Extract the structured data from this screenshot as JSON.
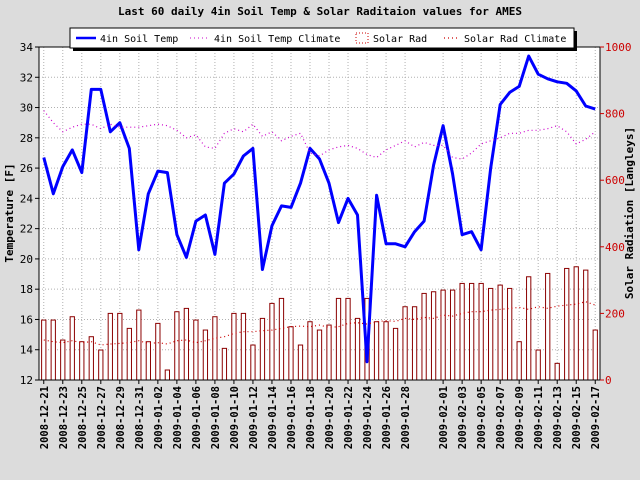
{
  "chart_data": {
    "type": "bar+line",
    "title": "Last 60 daily 4in Soil Temp & Solar Raditaion values for  AMES",
    "ylabel": "Temperature [F]",
    "y2label": "Solar Radiation [Langleys]",
    "ylim": [
      12,
      34
    ],
    "y2lim": [
      0,
      1000
    ],
    "yticks": [
      12,
      14,
      16,
      18,
      20,
      22,
      24,
      26,
      28,
      30,
      32,
      34
    ],
    "y2ticks": [
      0,
      200,
      400,
      600,
      800,
      1000
    ],
    "grid": true,
    "legend_position": "top",
    "legend": [
      "4in Soil Temp",
      "4in Soil Temp Climate",
      "Solar Rad",
      "Solar Rad Climate"
    ],
    "dates": [
      "2008-12-21",
      "2008-12-22",
      "2008-12-23",
      "2008-12-24",
      "2008-12-25",
      "2008-12-26",
      "2008-12-27",
      "2008-12-28",
      "2008-12-29",
      "2008-12-30",
      "2008-12-31",
      "2009-01-01",
      "2009-01-02",
      "2009-01-03",
      "2009-01-04",
      "2009-01-05",
      "2009-01-06",
      "2009-01-07",
      "2009-01-08",
      "2009-01-09",
      "2009-01-10",
      "2009-01-11",
      "2009-01-12",
      "2009-01-13",
      "2009-01-14",
      "2009-01-15",
      "2009-01-16",
      "2009-01-17",
      "2009-01-18",
      "2009-01-19",
      "2009-01-20",
      "2009-01-21",
      "2009-01-22",
      "2009-01-23",
      "2009-01-24",
      "2009-01-25",
      "2009-01-26",
      "2009-01-27",
      "2009-01-28",
      "2009-01-29",
      "2009-01-30",
      "2009-01-31",
      "2009-02-01",
      "2009-02-02",
      "2009-02-03",
      "2009-02-04",
      "2009-02-05",
      "2009-02-06",
      "2009-02-07",
      "2009-02-08",
      "2009-02-09",
      "2009-02-10",
      "2009-02-11",
      "2009-02-12",
      "2009-02-13",
      "2009-02-14",
      "2009-02-15",
      "2009-02-16",
      "2009-02-17"
    ],
    "xtick_labels": [
      "2008-12-21",
      "2008-12-23",
      "2008-12-25",
      "2008-12-27",
      "2008-12-29",
      "2008-12-31",
      "2009-01-02",
      "2009-01-04",
      "2009-01-06",
      "2009-01-08",
      "2009-01-10",
      "2009-01-12",
      "2009-01-14",
      "2009-01-16",
      "2009-01-18",
      "2009-01-20",
      "2009-01-22",
      "2009-01-24",
      "2009-01-26",
      "2009-01-28",
      "2009-02-01",
      "2009-02-03",
      "2009-02-05",
      "2009-02-07",
      "2009-02-09",
      "2009-02-11",
      "2009-02-13",
      "2009-02-15",
      "2009-02-17"
    ],
    "series": [
      {
        "name": "4in Soil Temp",
        "axis": "left",
        "color": "#0000ff",
        "style": "solid",
        "values": [
          26.7,
          24.3,
          26.1,
          27.2,
          25.7,
          31.2,
          31.2,
          28.4,
          29.0,
          27.3,
          20.6,
          24.3,
          25.8,
          25.7,
          21.6,
          20.1,
          22.5,
          22.9,
          20.3,
          25.0,
          25.6,
          26.8,
          27.3,
          19.3,
          22.2,
          23.5,
          23.4,
          25.0,
          27.3,
          26.6,
          25.0,
          22.4,
          24.0,
          22.9,
          13.2,
          24.2,
          21.0,
          21.0,
          20.8,
          21.8,
          22.5,
          26.2,
          28.8,
          25.6,
          21.6,
          21.8,
          20.6,
          26.0,
          30.2,
          31.0,
          31.4,
          33.4,
          32.2,
          31.9,
          31.7,
          31.6,
          31.1,
          30.1,
          29.9
        ]
      },
      {
        "name": "4in Soil Temp Climate",
        "axis": "left",
        "color": "#cc00cc",
        "style": "dotted",
        "values": [
          29.8,
          29.0,
          28.4,
          28.7,
          28.9,
          28.9,
          28.6,
          28.9,
          28.7,
          28.7,
          28.7,
          28.8,
          28.9,
          28.8,
          28.5,
          28.0,
          28.2,
          27.4,
          27.3,
          28.3,
          28.6,
          28.4,
          28.9,
          28.1,
          28.4,
          27.8,
          28.1,
          28.3,
          27.0,
          26.8,
          27.2,
          27.4,
          27.5,
          27.3,
          26.9,
          26.7,
          27.2,
          27.5,
          27.8,
          27.4,
          27.7,
          27.5,
          27.5,
          26.7,
          26.6,
          27.0,
          27.6,
          27.8,
          28.0,
          28.3,
          28.3,
          28.5,
          28.5,
          28.6,
          28.8,
          28.4,
          27.6,
          27.9,
          28.4
        ]
      },
      {
        "name": "Solar Rad",
        "axis": "right",
        "type": "bar",
        "color": "#cc0000",
        "values": [
          180,
          180,
          120,
          190,
          115,
          130,
          90,
          200,
          200,
          155,
          210,
          115,
          170,
          30,
          205,
          215,
          180,
          150,
          190,
          95,
          200,
          200,
          105,
          185,
          230,
          245,
          160,
          105,
          175,
          150,
          165,
          245,
          245,
          185,
          245,
          175,
          175,
          155,
          220,
          220,
          260,
          265,
          270,
          270,
          290,
          290,
          290,
          275,
          285,
          275,
          115,
          310,
          90,
          320,
          50,
          335,
          340,
          330,
          150
        ]
      },
      {
        "name": "Solar Rad Climate",
        "axis": "right",
        "color": "#cc0000",
        "style": "dotted",
        "values": [
          120,
          115,
          112,
          118,
          112,
          115,
          105,
          108,
          110,
          112,
          118,
          110,
          112,
          108,
          118,
          120,
          112,
          118,
          125,
          130,
          140,
          145,
          145,
          148,
          150,
          155,
          160,
          162,
          160,
          165,
          158,
          160,
          170,
          172,
          168,
          175,
          178,
          176,
          185,
          182,
          188,
          185,
          195,
          192,
          200,
          205,
          205,
          210,
          212,
          215,
          218,
          212,
          220,
          215,
          222,
          225,
          228,
          235,
          225
        ]
      }
    ]
  }
}
